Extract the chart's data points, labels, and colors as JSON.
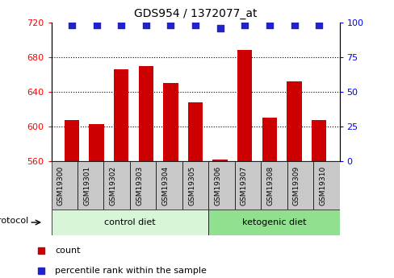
{
  "title": "GDS954 / 1372077_at",
  "samples": [
    "GSM19300",
    "GSM19301",
    "GSM19302",
    "GSM19303",
    "GSM19304",
    "GSM19305",
    "GSM19306",
    "GSM19307",
    "GSM19308",
    "GSM19309",
    "GSM19310"
  ],
  "counts": [
    607,
    603,
    666,
    670,
    650,
    628,
    562,
    688,
    610,
    652,
    607
  ],
  "percentile_ranks": [
    98,
    98,
    98,
    98,
    98,
    98,
    96,
    98,
    98,
    98,
    98
  ],
  "ylim_left": [
    560,
    720
  ],
  "ylim_right": [
    0,
    100
  ],
  "yticks_left": [
    560,
    600,
    640,
    680,
    720
  ],
  "yticks_right": [
    0,
    25,
    50,
    75,
    100
  ],
  "bar_color": "#cc0000",
  "dot_color": "#2222cc",
  "control_diet_indices": [
    0,
    1,
    2,
    3,
    4,
    5
  ],
  "ketogenic_diet_indices": [
    6,
    7,
    8,
    9,
    10
  ],
  "control_label": "control diet",
  "ketogenic_label": "ketogenic diet",
  "protocol_label": "protocol",
  "legend_count_label": "count",
  "legend_percentile_label": "percentile rank within the sample",
  "grid_lines": [
    600,
    640,
    680
  ],
  "bar_width": 0.6,
  "dot_size": 30,
  "control_color_light": "#d8f5d8",
  "control_color_dark": "#90e090",
  "ketogenic_color_light": "#90e090",
  "ketogenic_color_dark": "#50c850"
}
